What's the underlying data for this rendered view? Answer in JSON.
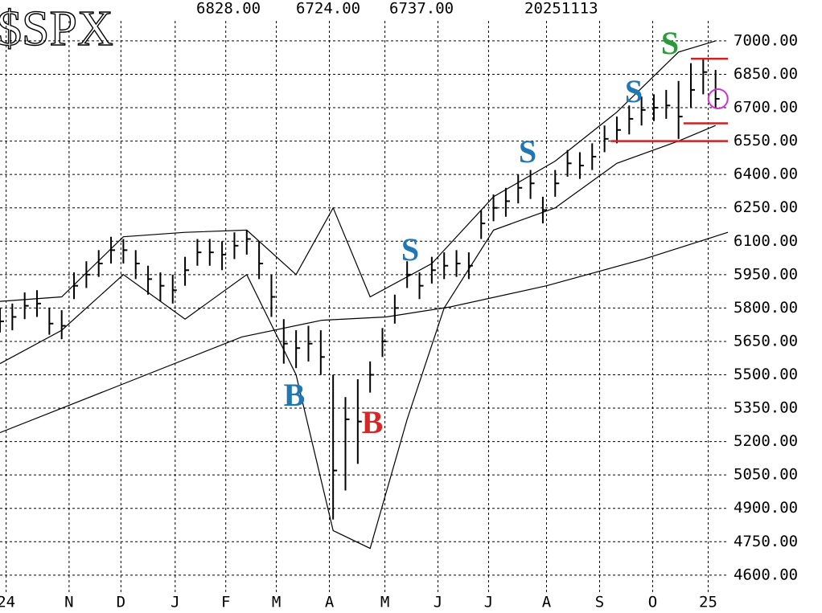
{
  "chart_data": {
    "type": "ohlc",
    "title": "$SPX",
    "header_values": [
      "6828.00",
      "6724.00",
      "6737.00",
      "20251113"
    ],
    "xlim": [
      0,
      59
    ],
    "ylim": [
      4520,
      7090
    ],
    "xticks": [
      {
        "value": 0.5,
        "label": "24"
      },
      {
        "value": 5.6,
        "label": "N"
      },
      {
        "value": 9.8,
        "label": "D"
      },
      {
        "value": 14.2,
        "label": "J"
      },
      {
        "value": 18.3,
        "label": "F"
      },
      {
        "value": 22.4,
        "label": "M"
      },
      {
        "value": 26.7,
        "label": "A"
      },
      {
        "value": 31.2,
        "label": "M"
      },
      {
        "value": 35.5,
        "label": "J"
      },
      {
        "value": 39.6,
        "label": "J"
      },
      {
        "value": 44.3,
        "label": "A"
      },
      {
        "value": 48.6,
        "label": "S"
      },
      {
        "value": 52.9,
        "label": "O"
      },
      {
        "value": 57.4,
        "label": "25"
      }
    ],
    "yticks": [
      {
        "value": 4600,
        "label": "4600.00"
      },
      {
        "value": 4750,
        "label": "4750.00"
      },
      {
        "value": 4900,
        "label": "4900.00"
      },
      {
        "value": 5050,
        "label": "5050.00"
      },
      {
        "value": 5200,
        "label": "5200.00"
      },
      {
        "value": 5350,
        "label": "5350.00"
      },
      {
        "value": 5500,
        "label": "5500.00"
      },
      {
        "value": 5650,
        "label": "5650.00"
      },
      {
        "value": 5800,
        "label": "5800.00"
      },
      {
        "value": 5950,
        "label": "5950.00"
      },
      {
        "value": 6100,
        "label": "6100.00"
      },
      {
        "value": 6250,
        "label": "6250.00"
      },
      {
        "value": 6400,
        "label": "6400.00"
      },
      {
        "value": 6550,
        "label": "6550.00"
      },
      {
        "value": 6700,
        "label": "6700.00"
      },
      {
        "value": 6850,
        "label": "6850.00"
      },
      {
        "value": 7000,
        "label": "7000.00"
      }
    ],
    "grid": true,
    "price": {
      "color": "#000000",
      "x": [
        0,
        1,
        2,
        3,
        4,
        5,
        6,
        7,
        8,
        9,
        10,
        11,
        12,
        13,
        14,
        15,
        16,
        17,
        18,
        19,
        20,
        21,
        22,
        23,
        24,
        25,
        26,
        27,
        28,
        29,
        30,
        31,
        32,
        33,
        34,
        35,
        36,
        37,
        38,
        39,
        40,
        41,
        42,
        43,
        44,
        45,
        46,
        47,
        48,
        49,
        50,
        51,
        52,
        53,
        54,
        55,
        56,
        57,
        58
      ],
      "high": [
        5800,
        5820,
        5870,
        5880,
        5800,
        5790,
        5960,
        6010,
        6060,
        6120,
        6110,
        6060,
        5990,
        5960,
        5950,
        6030,
        6110,
        6110,
        6100,
        6140,
        6150,
        6100,
        5950,
        5750,
        5700,
        5720,
        5700,
        5500,
        5400,
        5480,
        5560,
        5710,
        5860,
        6010,
        5960,
        6030,
        6050,
        6060,
        6050,
        6240,
        6310,
        6340,
        6400,
        6420,
        6300,
        6420,
        6510,
        6500,
        6540,
        6620,
        6660,
        6710,
        6750,
        6760,
        6780,
        6820,
        6900,
        6920,
        6870
      ],
      "low": [
        5690,
        5700,
        5750,
        5760,
        5680,
        5660,
        5840,
        5890,
        5940,
        6000,
        6000,
        5930,
        5860,
        5830,
        5820,
        5900,
        5990,
        5990,
        5970,
        6020,
        6040,
        5930,
        5760,
        5550,
        5530,
        5560,
        5500,
        4850,
        4980,
        5100,
        5420,
        5580,
        5730,
        5890,
        5840,
        5910,
        5930,
        5940,
        5930,
        6110,
        6190,
        6210,
        6270,
        6290,
        6180,
        6300,
        6390,
        6380,
        6420,
        6500,
        6540,
        6580,
        6620,
        6640,
        6650,
        6560,
        6700,
        6760,
        6700
      ],
      "close": [
        5740,
        5760,
        5810,
        5820,
        5730,
        5720,
        5900,
        5950,
        6000,
        6060,
        6060,
        6000,
        5930,
        5900,
        5880,
        5970,
        6050,
        6050,
        6040,
        6080,
        6110,
        6000,
        5850,
        5640,
        5620,
        5640,
        5580,
        5070,
        5300,
        5290,
        5500,
        5650,
        5800,
        5950,
        5900,
        5970,
        5990,
        6000,
        5990,
        6180,
        6250,
        6280,
        6340,
        6360,
        6240,
        6360,
        6450,
        6440,
        6480,
        6560,
        6600,
        6650,
        6690,
        6700,
        6710,
        6660,
        6780,
        6860,
        6740
      ]
    },
    "lines": [
      {
        "color": "#000000",
        "x": [
          0,
          9.8,
          19.6,
          26.1,
          31.3,
          36.5,
          44.3,
          52.2,
          59
        ],
        "values": [
          5240,
          5455,
          5670,
          5745,
          5760,
          5805,
          5900,
          6020,
          6140
        ]
      },
      {
        "color": "#000000",
        "x": [
          0,
          5,
          10,
          15,
          20,
          24,
          27,
          30,
          35,
          40,
          45,
          50,
          55,
          58
        ],
        "values": [
          5830,
          5850,
          6120,
          6140,
          6150,
          5950,
          6250,
          5850,
          6000,
          6300,
          6460,
          6680,
          6950,
          7000
        ]
      },
      {
        "color": "#000000",
        "x": [
          0,
          5,
          10,
          15,
          20,
          24,
          27,
          30,
          33,
          36,
          40,
          45,
          50,
          55,
          58
        ],
        "values": [
          5550,
          5700,
          5950,
          5750,
          5950,
          5500,
          4800,
          4720,
          5300,
          5800,
          6150,
          6250,
          6450,
          6550,
          6620
        ]
      }
    ],
    "levels": [
      {
        "color": "#cc2222",
        "value": 6920,
        "from": 56,
        "to": 59
      },
      {
        "color": "#cc2222",
        "value": 6630,
        "from": 55.4,
        "to": 59
      },
      {
        "color": "#cc2222",
        "value": 6550,
        "from": 49.5,
        "to": 59
      }
    ],
    "circle": {
      "color": "#cc33cc",
      "x": 58.2,
      "value": 6740
    },
    "annotations": [
      {
        "text": "S",
        "color": "#2a9a3a"
      },
      {
        "text": "S",
        "color": "#1f77b4"
      },
      {
        "text": "S",
        "color": "#1f77b4"
      },
      {
        "text": "S",
        "color": "#1f77b4"
      },
      {
        "text": "B",
        "color": "#1f77b4"
      },
      {
        "text": "B",
        "color": "#d62728"
      }
    ]
  }
}
